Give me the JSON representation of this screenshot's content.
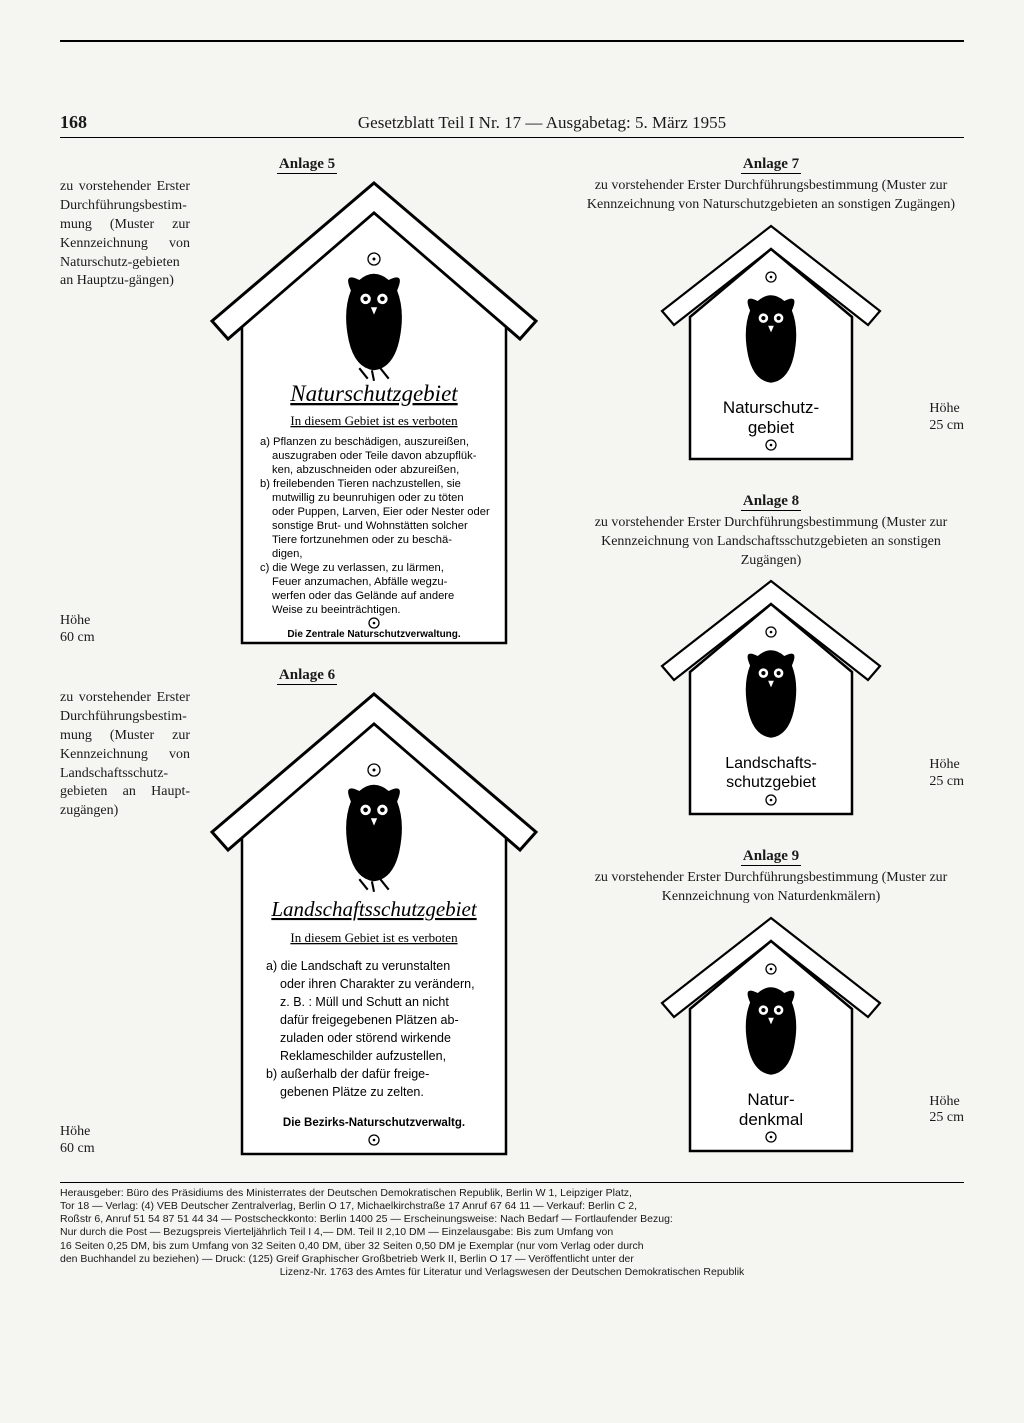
{
  "page_number": "168",
  "header": "Gesetzblatt Teil I Nr. 17 — Ausgabetag: 5. März 1955",
  "anlage5": {
    "title": "Anlage 5",
    "caption": "zu vorstehender Erster Durchführungsbestim-mung (Muster zur Kennzeichnung von Naturschutz-gebieten an Hauptzu-gängen)",
    "height": "Höhe\n60 cm",
    "sign": {
      "title": "Naturschutzgebiet",
      "sub": "In diesem Gebiet ist es verboten",
      "line_a1": "a) Pflanzen zu beschädigen, auszureißen,",
      "line_a2": "auszugraben oder Teile davon abzupflük-",
      "line_a3": "ken, abzuschneiden oder abzureißen,",
      "line_b1": "b) freilebenden Tieren nachzustellen, sie",
      "line_b2": "mutwillig zu beunruhigen oder zu töten",
      "line_b3": "oder Puppen, Larven, Eier oder Nester oder",
      "line_b4": "sonstige Brut- und Wohnstätten solcher",
      "line_b5": "Tiere fortzunehmen oder zu beschä-",
      "line_b6": "digen,",
      "line_c1": "c) die Wege zu verlassen, zu lärmen,",
      "line_c2": "Feuer anzumachen, Abfälle wegzu-",
      "line_c3": "werfen oder das Gelände auf andere",
      "line_c4": "Weise zu beeinträchtigen.",
      "footer": "Die Zentrale Naturschutzverwaltung."
    }
  },
  "anlage6": {
    "title": "Anlage 6",
    "caption": "zu vorstehender Erster Durchführungsbestim-mung (Muster zur Kennzeichnung von Landschaftsschutz-gebieten an Haupt-zugängen)",
    "height": "Höhe\n60 cm",
    "sign": {
      "title": "Landschaftsschutzgebiet",
      "sub": "In diesem Gebiet ist es verboten",
      "line_a1": "a) die Landschaft zu verunstalten",
      "line_a2": "oder ihren Charakter zu verändern,",
      "line_a3": "z. B. : Müll und Schutt an nicht",
      "line_a4": "dafür freigegebenen Plätzen ab-",
      "line_a5": "zuladen oder störend wirkende",
      "line_a6": "Reklameschilder aufzustellen,",
      "line_b1": "b) außerhalb der dafür freige-",
      "line_b2": "gebenen Plätze zu zelten.",
      "footer": "Die Bezirks-Naturschutzverwaltg."
    }
  },
  "anlage7": {
    "title": "Anlage 7",
    "caption": "zu vorstehender Erster Durchführungsbestimmung (Muster zur Kennzeichnung von Naturschutzgebieten an sonstigen Zugängen)",
    "height": "Höhe\n25 cm",
    "label1": "Naturschutz-",
    "label2": "gebiet"
  },
  "anlage8": {
    "title": "Anlage 8",
    "caption": "zu vorstehender Erster Durchführungsbestimmung (Muster zur Kennzeichnung von Landschaftsschutzgebieten an sonstigen Zugängen)",
    "height": "Höhe\n25 cm",
    "label1": "Landschafts-",
    "label2": "schutzgebiet"
  },
  "anlage9": {
    "title": "Anlage 9",
    "caption": "zu vorstehender Erster Durchführungsbestimmung (Muster zur Kennzeichnung von Naturdenkmälern)",
    "height": "Höhe\n25 cm",
    "label1": "Natur-",
    "label2": "denkmal"
  },
  "imprint": {
    "l1": "Herausgeber: Büro des Präsidiums des Ministerrates der Deutschen Demokratischen Republik, Berlin W 1, Leipziger Platz,",
    "l2": "Tor 18 — Verlag: (4) VEB Deutscher Zentralverlag, Berlin O 17, Michaelkirchstraße 17 Anruf 67 64 11 — Verkauf: Berlin C 2,",
    "l3": "Roßstr 6, Anruf 51 54 87 51 44 34 — Postscheckkonto: Berlin 1400 25 — Erscheinungsweise: Nach Bedarf — Fortlaufender Bezug:",
    "l4": "Nur durch die Post — Bezugspreis Vierteljährlich Teil I 4,— DM. Teil II 2,10 DM — Einzelausgabe: Bis zum Umfang von",
    "l5": "16 Seiten 0,25 DM, bis zum Umfang von 32 Seiten 0,40 DM, über 32 Seiten 0,50 DM je Exemplar (nur vom Verlag oder durch",
    "l6": "den Buchhandel zu beziehen) — Druck: (125) Greif Graphischer Großbetrieb Werk II, Berlin O 17 — Veröffentlicht unter der",
    "l7": "Lizenz-Nr. 1763 des Amtes für Literatur und Verlagswesen der Deutschen Demokratischen Republik"
  }
}
